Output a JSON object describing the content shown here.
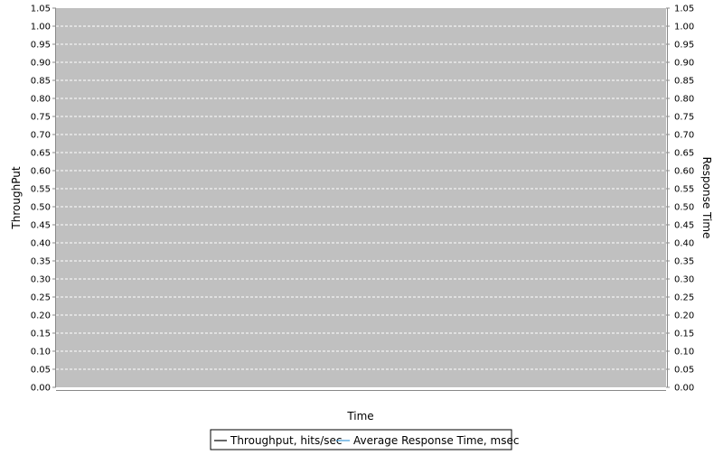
{
  "chart_data": {
    "type": "line",
    "title": "",
    "xlabel": "Time",
    "ylabel_left": "ThroughPut",
    "ylabel_right": "Response Time",
    "ylim": [
      0,
      1.05
    ],
    "ytick_step": 0.05,
    "grid": true,
    "legend_position": "bottom-center",
    "plot_background": "#c0c0c0",
    "series": [
      {
        "name": "Throughput, hits/sec",
        "color": "#000000",
        "values": []
      },
      {
        "name": "Average Response Time, msec",
        "color": "#3c9ad8",
        "values": []
      }
    ]
  }
}
